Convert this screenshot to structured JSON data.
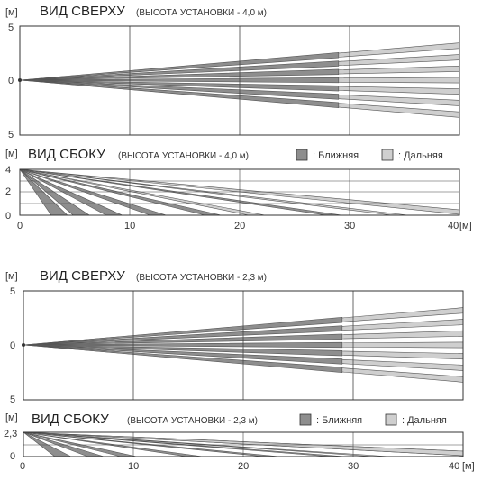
{
  "top1": {
    "unit": "[м]",
    "title": "ВИД СВЕРХУ",
    "subtitle": "(ВЫСОТА УСТАНОВКИ - 4,0 м)",
    "y_ticks": [
      "5",
      "0",
      "5"
    ]
  },
  "side1": {
    "unit": "[м]",
    "title": "ВИД СБОКУ",
    "subtitle": "(ВЫСОТА УСТАНОВКИ - 4,0 м)",
    "y_ticks": [
      "4",
      "2",
      "0"
    ],
    "x_ticks": [
      "0",
      "10",
      "20",
      "30",
      "40"
    ],
    "x_unit": "[м]",
    "legend_near": ": Ближняя",
    "legend_far": ": Дальняя"
  },
  "top2": {
    "unit": "[м]",
    "title": "ВИД СВЕРХУ",
    "subtitle": "(ВЫСОТА УСТАНОВКИ - 2,3 м)",
    "y_ticks": [
      "5",
      "0",
      "5"
    ]
  },
  "side2": {
    "unit": "[м]",
    "title": "ВИД СБОКУ",
    "subtitle": "(ВЫСОТА УСТАНОВКИ - 2,3 м)",
    "y_ticks": [
      "2,3",
      "0"
    ],
    "x_ticks": [
      "0",
      "10",
      "20",
      "30",
      "40"
    ],
    "x_unit": "[м]",
    "legend_near": ": Ближняя",
    "legend_far": ": Дальняя"
  },
  "colors": {
    "near": "#8e8e8e",
    "far": "#cfcfcf",
    "frame": "#333333",
    "grid": "#444444"
  },
  "diagram": {
    "x_range_m": [
      0,
      40
    ],
    "top_y_range_m": [
      -5,
      5
    ],
    "near_range_m": 29,
    "far_range_m": 40,
    "top_beam_angles_deg": [
      -9,
      -6,
      -3,
      0,
      3,
      6,
      9
    ],
    "side1_mount_height_m": 4.0,
    "side1_near_ends_m": [
      4,
      6,
      9,
      13,
      18,
      29
    ],
    "side1_far_ends_m": [
      22,
      35,
      40
    ],
    "side2_mount_height_m": 2.3,
    "side2_near_ends_m": [
      4,
      7,
      10,
      16,
      23,
      29
    ],
    "side2_far_ends_m": [
      33,
      40,
      40
    ]
  }
}
